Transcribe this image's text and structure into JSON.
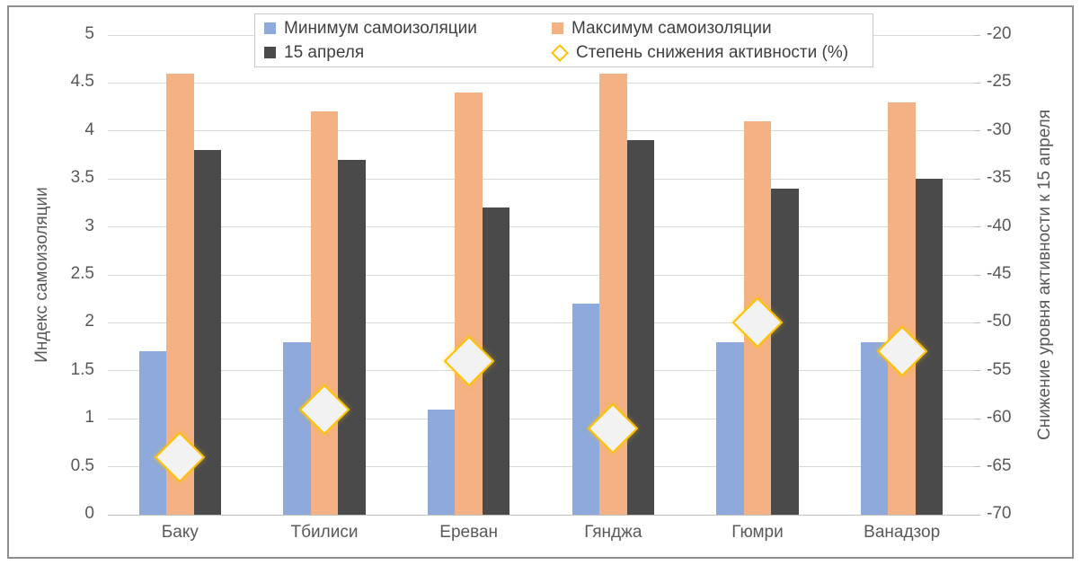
{
  "chart_data": {
    "type": "bar",
    "subtype": "grouped-bars-with-diamond-scatter-overlay-on-secondary-axis",
    "title": "",
    "categories": [
      "Баку",
      "Тбилиси",
      "Ереван",
      "Гянджа",
      "Гюмри",
      "Ванадзор"
    ],
    "series": [
      {
        "name": "Минимум самоизоляции",
        "type": "bar",
        "axis": "left",
        "color": "#8EA9DB",
        "values": [
          1.7,
          1.8,
          1.1,
          2.2,
          1.8,
          1.8
        ]
      },
      {
        "name": "Максимум самоизоляции",
        "type": "bar",
        "axis": "left",
        "color": "#F4B183",
        "values": [
          4.6,
          4.2,
          4.4,
          4.6,
          4.1,
          4.3
        ]
      },
      {
        "name": "15 апреля",
        "type": "bar",
        "axis": "left",
        "color": "#4A4A4A",
        "values": [
          3.8,
          3.7,
          3.2,
          3.9,
          3.4,
          3.5
        ]
      },
      {
        "name": "Степень снижения активности (%)",
        "type": "scatter",
        "marker": "diamond",
        "axis": "right",
        "fill": "#F2F2F2",
        "border_color": "#FFC000",
        "values": [
          -64,
          -59,
          -54,
          -61,
          -50,
          -53
        ]
      }
    ],
    "left_axis": {
      "title": "Индекс самоизоляции",
      "min": 0,
      "max": 5,
      "step": 0.5,
      "ticks_bottom_to_top": [
        "0",
        "0.5",
        "1",
        "1.5",
        "2",
        "2.5",
        "3",
        "3.5",
        "4",
        "4.5",
        "5"
      ]
    },
    "right_axis": {
      "title": "Снижение уровня активности к 15 апреля",
      "min": -70,
      "max": -20,
      "step": 5,
      "ticks_top_to_bottom": [
        "-20",
        "-25",
        "-30",
        "-35",
        "-40",
        "-45",
        "-50",
        "-55",
        "-60",
        "-65",
        "-70"
      ]
    },
    "legend": {
      "position": "top",
      "items": [
        {
          "label": "Минимум самоизоляции",
          "marker": "square",
          "color": "#8EA9DB"
        },
        {
          "label": "Максимум самоизоляции",
          "marker": "square",
          "color": "#F4B183"
        },
        {
          "label": "15 апреля",
          "marker": "square",
          "color": "#4A4A4A"
        },
        {
          "label": "Степень снижения активности (%)",
          "marker": "diamond",
          "color": "#FFC000"
        }
      ]
    },
    "grid": {
      "horizontal": true,
      "color": "#D9D9D9",
      "baseline_color": "#BFBFBF"
    }
  }
}
